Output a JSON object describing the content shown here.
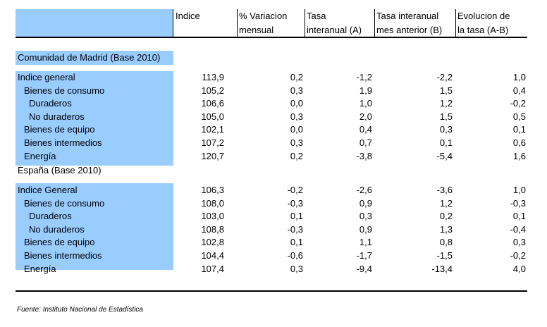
{
  "headers": {
    "indice": "Indice",
    "variacion": [
      "% Variacion",
      "mensual"
    ],
    "tasa": [
      "Tasa",
      "interanual (A)"
    ],
    "tasa_mes": [
      "Tasa interanual",
      "mes anterior (B)"
    ],
    "evolucion": [
      "Evolucion de",
      "la tasa (A-B)"
    ]
  },
  "madrid": {
    "title": "Comunidad de Madrid (Base 2010)",
    "rows": [
      {
        "label": "Indice general",
        "v": [
          "113,9",
          "0,2",
          "-1,2",
          "-2,2",
          "1,0"
        ]
      },
      {
        "label": "Bienes de consumo",
        "v": [
          "105,2",
          "0,3",
          "1,9",
          "1,5",
          "0,4"
        ]
      },
      {
        "label": "Duraderos",
        "v": [
          "106,6",
          "0,0",
          "1,0",
          "1,2",
          "-0,2"
        ]
      },
      {
        "label": "No duraderos",
        "v": [
          "105,0",
          "0,3",
          "2,0",
          "1,5",
          "0,5"
        ]
      },
      {
        "label": "Bienes de equipo",
        "v": [
          "102,1",
          "0,0",
          "0,4",
          "0,3",
          "0,1"
        ]
      },
      {
        "label": "Bienes intermedios",
        "v": [
          "107,2",
          "0,3",
          "0,7",
          "0,1",
          "0,6"
        ]
      },
      {
        "label": "Energía",
        "v": [
          "120,7",
          "0,2",
          "-3,8",
          "-5,4",
          "1,6"
        ]
      }
    ]
  },
  "espana": {
    "title": "España (Base 2010)",
    "rows": [
      {
        "label": "Indice General",
        "v": [
          "106,3",
          "-0,2",
          "-2,6",
          "-3,6",
          "1,0"
        ]
      },
      {
        "label": "Bienes de consumo",
        "v": [
          "108,0",
          "-0,3",
          "0,9",
          "1,2",
          "-0,3"
        ]
      },
      {
        "label": "Duraderos",
        "v": [
          "103,0",
          "0,1",
          "0,3",
          "0,2",
          "0,1"
        ]
      },
      {
        "label": "No duraderos",
        "v": [
          "108,8",
          "-0,3",
          "0,9",
          "1,3",
          "-0,4"
        ]
      },
      {
        "label": "Bienes de equipo",
        "v": [
          "102,8",
          "0,1",
          "1,1",
          "0,8",
          "0,3"
        ]
      },
      {
        "label": "Bienes intermedios",
        "v": [
          "104,4",
          "-0,6",
          "-1,7",
          "-1,5",
          "-0,2"
        ]
      },
      {
        "label": "Energía",
        "v": [
          "107,4",
          "0,3",
          "-9,4",
          "-13,4",
          "4,0"
        ]
      }
    ]
  },
  "footer": "Fuente: Instituto Nacional de Estadística"
}
